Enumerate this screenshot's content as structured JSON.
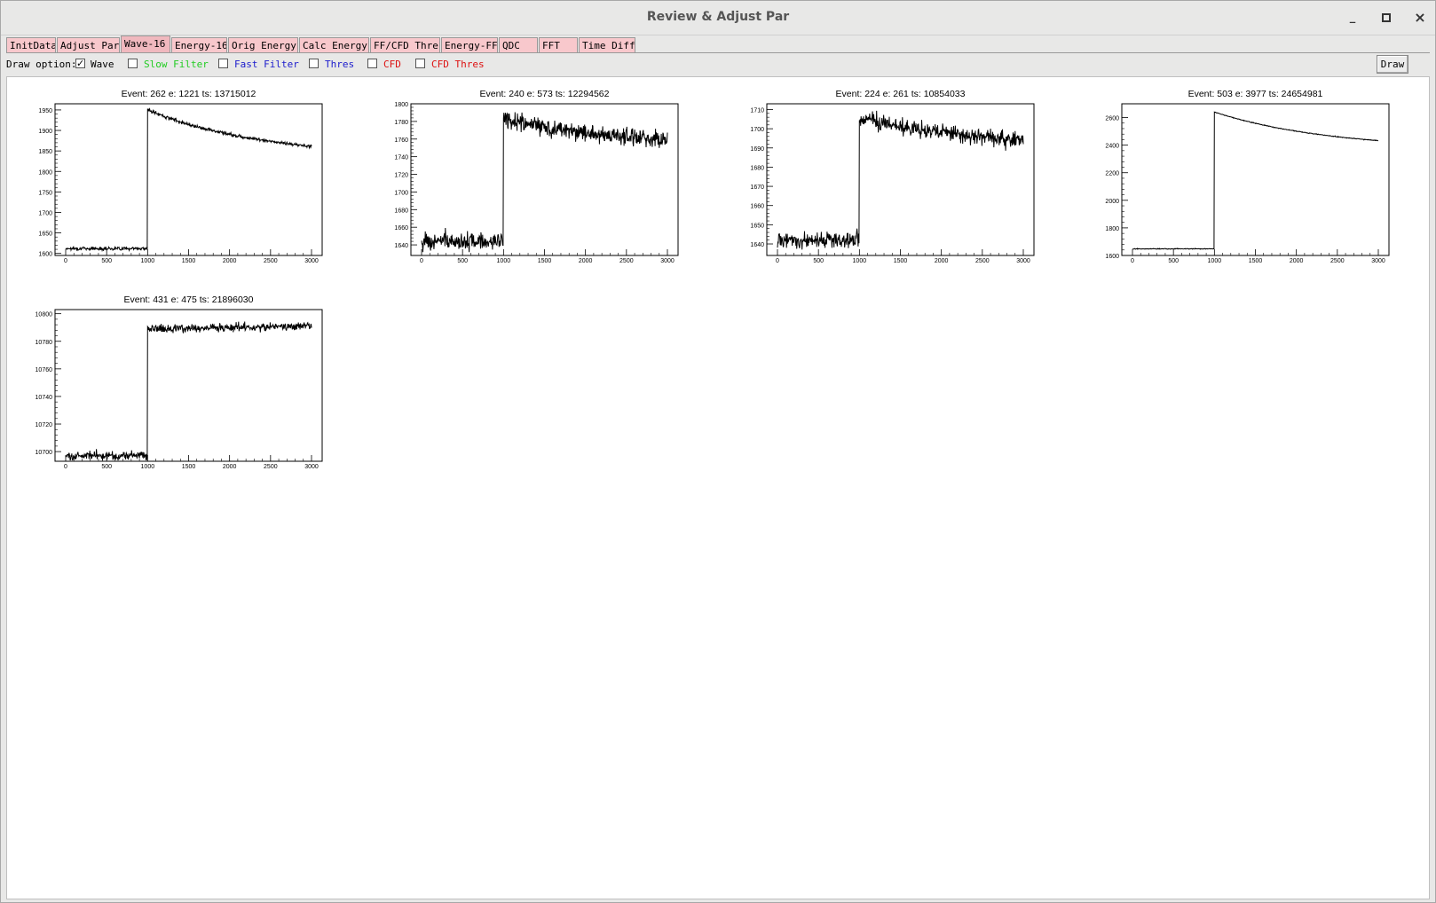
{
  "window": {
    "title": "Review & Adjust Par",
    "minimize": "_",
    "maximize": "▫",
    "close": "×"
  },
  "tabs": [
    {
      "label": "InitData",
      "active": false
    },
    {
      "label": "Adjust Par",
      "active": false
    },
    {
      "label": "Wave-16",
      "active": true
    },
    {
      "label": "Energy-16",
      "active": false
    },
    {
      "label": "Orig Energy",
      "active": false
    },
    {
      "label": "Calc Energy",
      "active": false
    },
    {
      "label": "FF/CFD Thre",
      "active": false
    },
    {
      "label": "Energy-FF",
      "active": false
    },
    {
      "label": "QDC",
      "active": false
    },
    {
      "label": "FFT",
      "active": false
    },
    {
      "label": "Time Diff",
      "active": false
    }
  ],
  "options": {
    "label": "Draw option:",
    "items": [
      {
        "label": "Wave",
        "checked": true,
        "color": "#000000"
      },
      {
        "label": "Slow Filter",
        "checked": false,
        "color": "#22cc22"
      },
      {
        "label": "Fast Filter",
        "checked": false,
        "color": "#1a1acc"
      },
      {
        "label": "Thres",
        "checked": false,
        "color": "#1a1acc"
      },
      {
        "label": "CFD",
        "checked": false,
        "color": "#dd1111"
      },
      {
        "label": "CFD Thres",
        "checked": false,
        "color": "#dd1111"
      }
    ],
    "draw_button": "Draw"
  },
  "chart_data": [
    {
      "type": "line",
      "title": "Event: 262   e: 1221   ts: 13715012",
      "xlim": [
        0,
        3000
      ],
      "ylim": [
        1595,
        1965
      ],
      "yticks": [
        1600,
        1650,
        1700,
        1750,
        1800,
        1850,
        1900,
        1950
      ],
      "xticks": [
        0,
        500,
        1000,
        1500,
        2000,
        2500,
        3000
      ],
      "series": [
        {
          "baseline": 1612,
          "rise_at": 1000,
          "peak": 1950,
          "end": 1832,
          "noise": 3,
          "shape": "decay"
        }
      ]
    },
    {
      "type": "line",
      "title": "Event: 240   e: 573   ts: 12294562",
      "xlim": [
        0,
        3000
      ],
      "ylim": [
        1628,
        1800
      ],
      "yticks": [
        1640,
        1660,
        1680,
        1700,
        1720,
        1740,
        1760,
        1780,
        1800
      ],
      "xticks": [
        0,
        500,
        1000,
        1500,
        2000,
        2500,
        3000
      ],
      "series": [
        {
          "baseline": 1644,
          "rise_at": 1000,
          "peak": 1783,
          "end": 1752,
          "noise": 7,
          "shape": "decay"
        }
      ]
    },
    {
      "type": "line",
      "title": "Event: 224   e: 261   ts: 10854033",
      "xlim": [
        0,
        3000
      ],
      "ylim": [
        1634,
        1713
      ],
      "yticks": [
        1640,
        1650,
        1660,
        1670,
        1680,
        1690,
        1700,
        1710
      ],
      "xticks": [
        0,
        500,
        1000,
        1500,
        2000,
        2500,
        3000
      ],
      "series": [
        {
          "baseline": 1642,
          "rise_at": 1000,
          "peak": 1706,
          "end": 1690,
          "noise": 3,
          "shape": "decay"
        }
      ]
    },
    {
      "type": "line",
      "title": "Event: 503   e: 3977   ts: 24654981",
      "xlim": [
        0,
        3000
      ],
      "ylim": [
        1600,
        2700
      ],
      "yticks": [
        1600,
        1800,
        2000,
        2200,
        2400,
        2600
      ],
      "xticks": [
        0,
        500,
        1000,
        1500,
        2000,
        2500,
        3000
      ],
      "series": [
        {
          "baseline": 1648,
          "rise_at": 1000,
          "peak": 2640,
          "end": 2365,
          "noise": 2,
          "shape": "decay"
        }
      ]
    },
    {
      "type": "line",
      "title": "Event: 431   e: 475   ts: 21896030",
      "xlim": [
        0,
        3000
      ],
      "ylim": [
        10693,
        10803
      ],
      "yticks": [
        10700,
        10720,
        10740,
        10760,
        10780,
        10800
      ],
      "xticks": [
        0,
        500,
        1000,
        1500,
        2000,
        2500,
        3000
      ],
      "series": [
        {
          "baseline": 10697,
          "rise_at": 1000,
          "peak": 10789,
          "end": 10791,
          "noise": 2.2,
          "shape": "flat"
        }
      ]
    }
  ]
}
